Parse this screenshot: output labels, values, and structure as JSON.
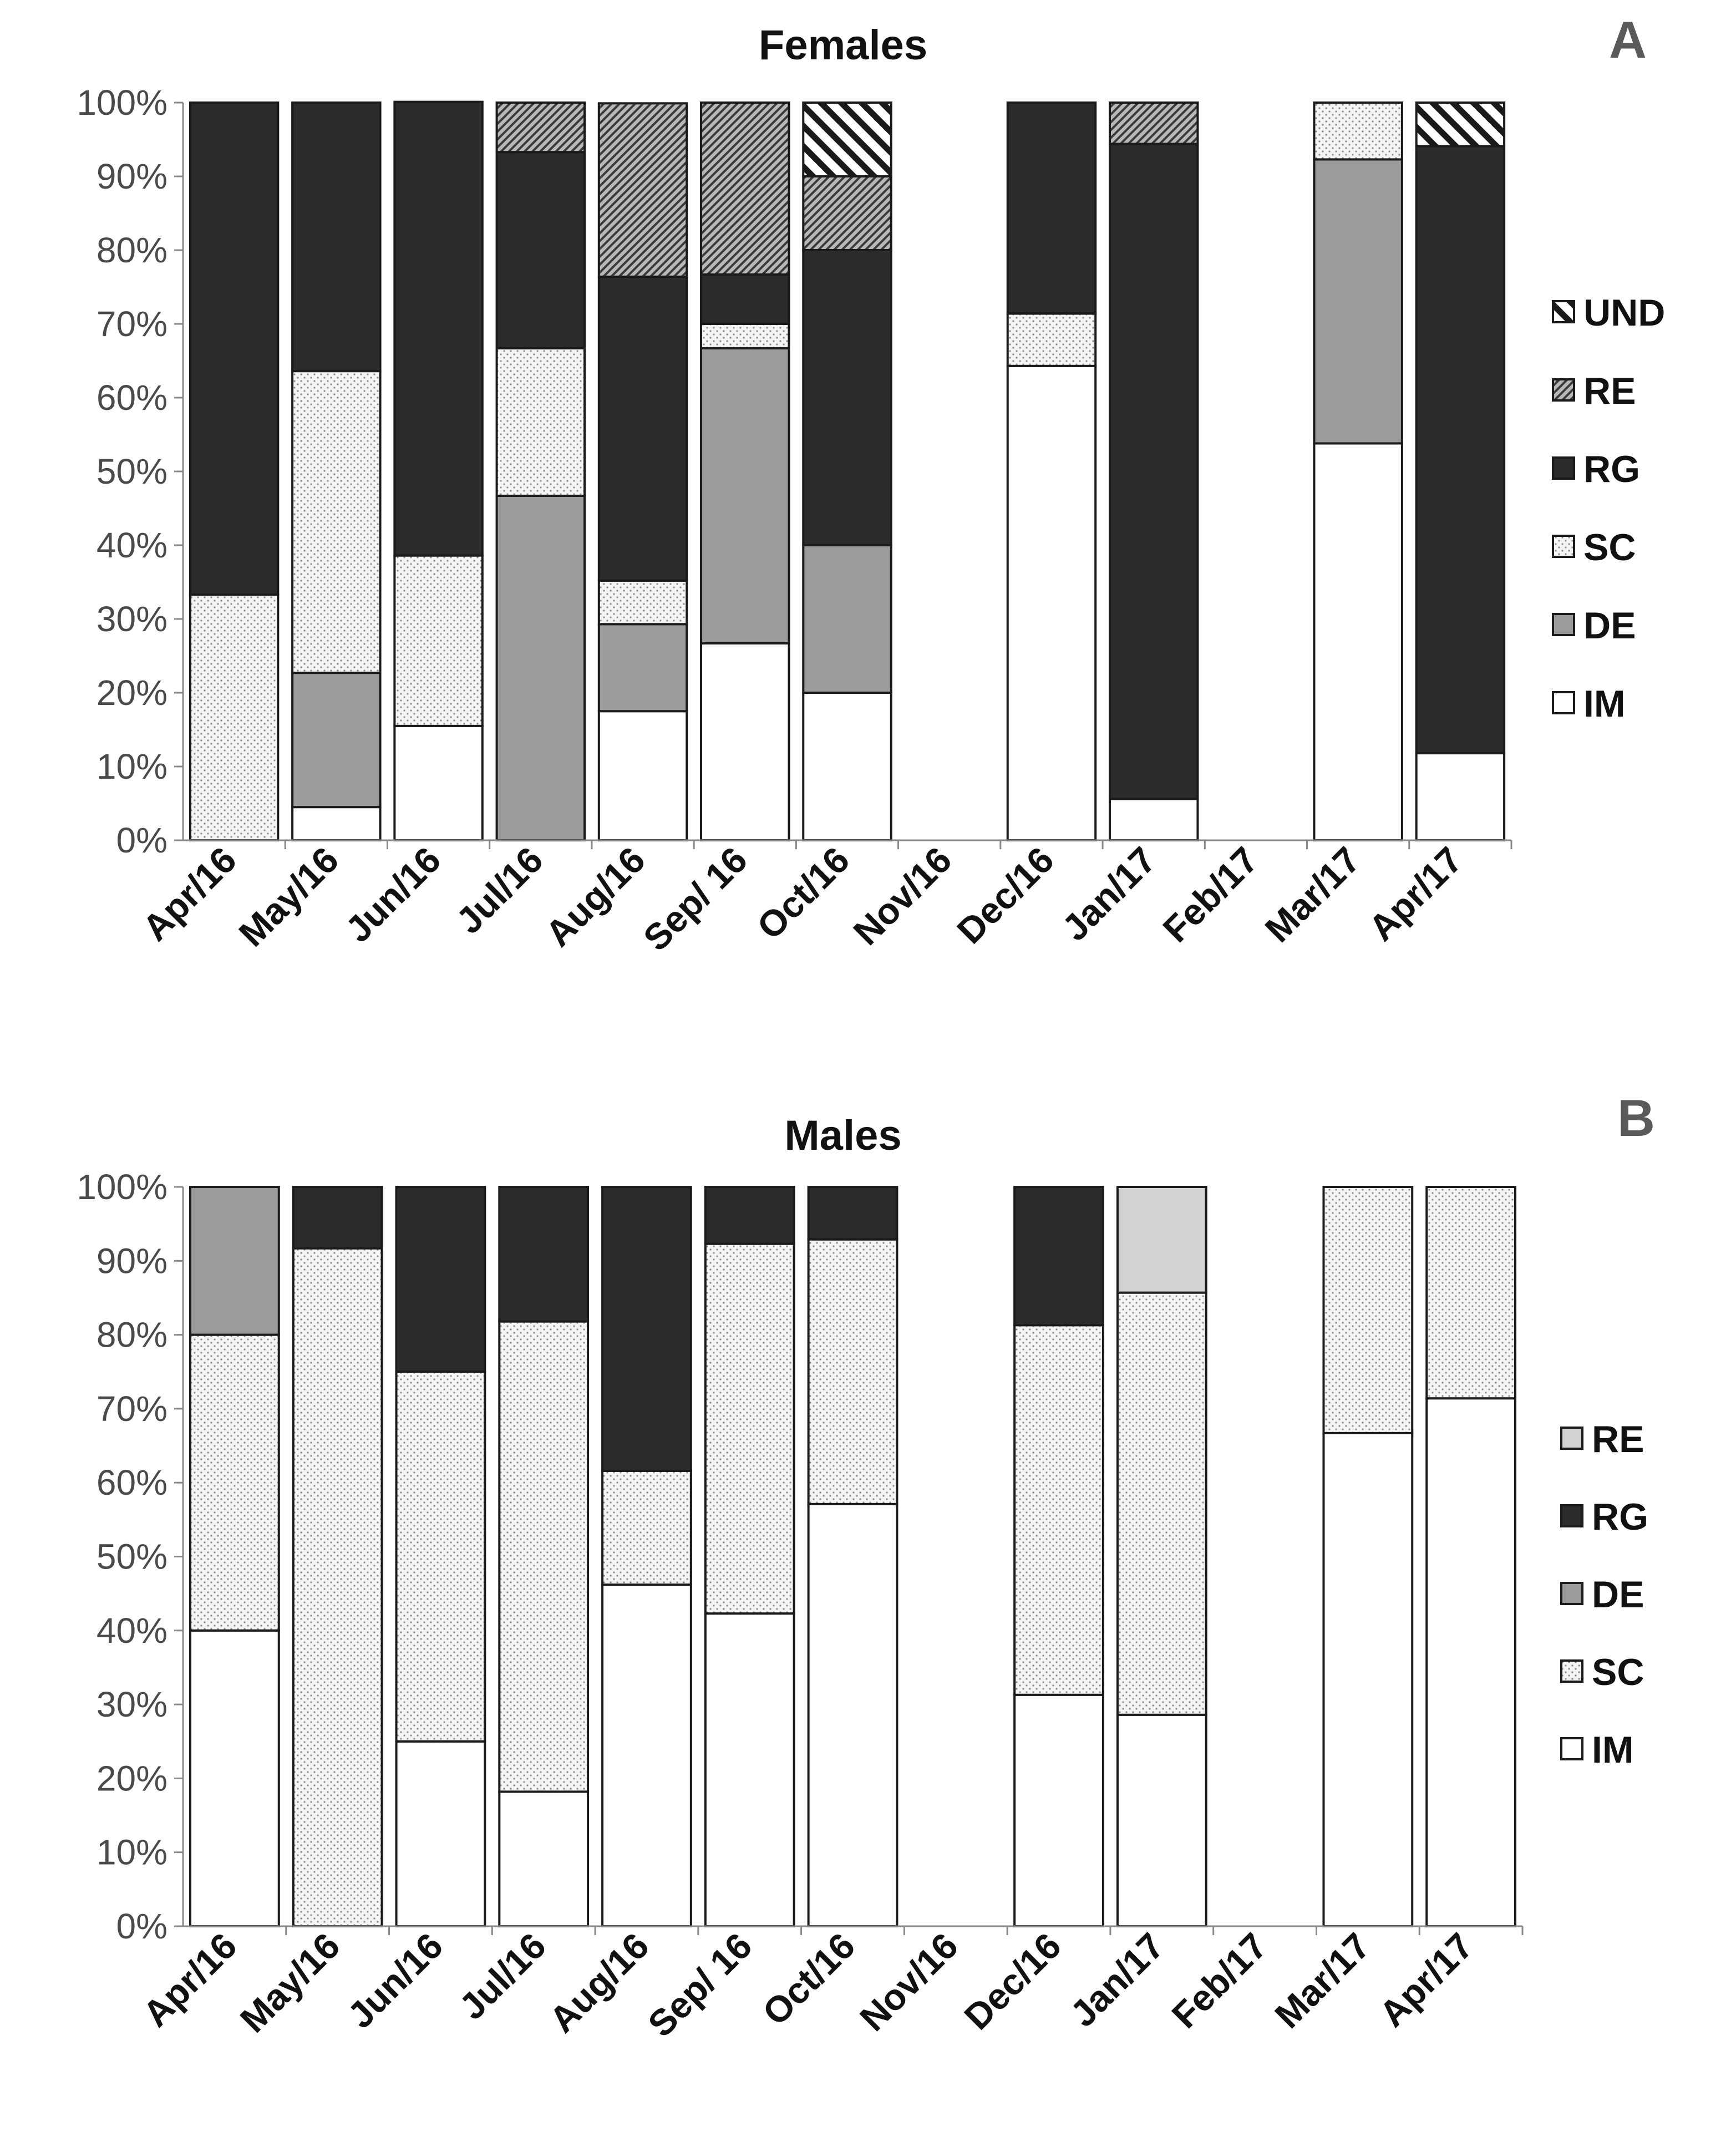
{
  "colors": {
    "IM": "#ffffff",
    "DE": "#9b9b9b",
    "SC": "#f4f4f4",
    "RG": "#2b2b2b",
    "RE_female": "#bdbdbd",
    "RE_male": "#d2d2d2",
    "UND": "#ffffff",
    "outline": "#1a1a1a",
    "axis": "#888888"
  },
  "chart_data": [
    {
      "type": "bar",
      "stacked": true,
      "panel_label": "A",
      "title": "Females",
      "xlabel": "",
      "ylabel": "",
      "ylim": [
        0,
        100
      ],
      "yticks": [
        "0%",
        "10%",
        "20%",
        "30%",
        "40%",
        "50%",
        "60%",
        "70%",
        "80%",
        "90%",
        "100%"
      ],
      "legend_position": "right",
      "categories": [
        "Apr/16",
        "May/16",
        "Jun/16",
        "Jul/16",
        "Aug/16",
        "Sep/ 16",
        "Oct/16",
        "Nov/16",
        "Dec/16",
        "Jan/17",
        "Feb/17",
        "Mar/17",
        "Apr/17"
      ],
      "series": [
        {
          "name": "IM",
          "pattern": "plain",
          "values": [
            0,
            4.5,
            15.5,
            0,
            17.5,
            26.7,
            20,
            null,
            64.3,
            5.6,
            null,
            53.8,
            11.8
          ]
        },
        {
          "name": "DE",
          "pattern": "gray",
          "values": [
            0,
            18.2,
            0,
            46.7,
            11.8,
            40,
            20,
            null,
            0,
            0,
            null,
            38.5,
            0
          ]
        },
        {
          "name": "SC",
          "pattern": "dots",
          "values": [
            33.3,
            40.9,
            23.1,
            20,
            5.9,
            3.3,
            0,
            null,
            7.1,
            0,
            null,
            7.7,
            0
          ]
        },
        {
          "name": "RG",
          "pattern": "black",
          "values": [
            66.7,
            36.4,
            61.5,
            26.6,
            41.2,
            6.7,
            40,
            null,
            28.6,
            88.8,
            null,
            0,
            82.3
          ]
        },
        {
          "name": "RE",
          "pattern": "dense",
          "values": [
            0,
            0,
            0,
            6.7,
            23.5,
            23.3,
            10,
            null,
            0,
            5.6,
            null,
            0,
            0
          ]
        },
        {
          "name": "UND",
          "pattern": "hatch",
          "values": [
            0,
            0,
            0,
            0,
            0,
            0,
            10,
            null,
            0,
            0,
            null,
            0,
            5.9
          ]
        }
      ],
      "legend": [
        "UND",
        "RE",
        "RG",
        "SC",
        "DE",
        "IM"
      ]
    },
    {
      "type": "bar",
      "stacked": true,
      "panel_label": "B",
      "title": "Males",
      "xlabel": "",
      "ylabel": "",
      "ylim": [
        0,
        100
      ],
      "yticks": [
        "0%",
        "10%",
        "20%",
        "30%",
        "40%",
        "50%",
        "60%",
        "70%",
        "80%",
        "90%",
        "100%"
      ],
      "legend_position": "right",
      "categories": [
        "Apr/16",
        "May/16",
        "Jun/16",
        "Jul/16",
        "Aug/16",
        "Sep/ 16",
        "Oct/16",
        "Nov/16",
        "Dec/16",
        "Jan/17",
        "Feb/17",
        "Mar/17",
        "Apr/17"
      ],
      "series": [
        {
          "name": "IM",
          "pattern": "plain",
          "values": [
            40,
            0,
            25,
            18.2,
            46.2,
            42.3,
            57.1,
            null,
            31.3,
            28.6,
            null,
            66.7,
            71.4
          ]
        },
        {
          "name": "SC",
          "pattern": "dots",
          "values": [
            40,
            91.7,
            50,
            63.6,
            15.4,
            50,
            35.8,
            null,
            50,
            57.1,
            null,
            33.3,
            28.6
          ]
        },
        {
          "name": "DE",
          "pattern": "gray",
          "values": [
            20,
            0,
            0,
            0,
            0,
            0,
            0,
            null,
            0,
            0,
            null,
            0,
            0
          ]
        },
        {
          "name": "RG",
          "pattern": "black",
          "values": [
            0,
            8.3,
            25,
            18.2,
            38.4,
            7.7,
            7.1,
            null,
            18.7,
            0,
            null,
            0,
            0
          ]
        },
        {
          "name": "RE",
          "pattern": "light",
          "values": [
            0,
            0,
            0,
            0,
            0,
            0,
            0,
            null,
            0,
            14.3,
            null,
            0,
            0
          ]
        }
      ],
      "legend": [
        "RE",
        "RG",
        "DE",
        "SC",
        "IM"
      ]
    }
  ]
}
